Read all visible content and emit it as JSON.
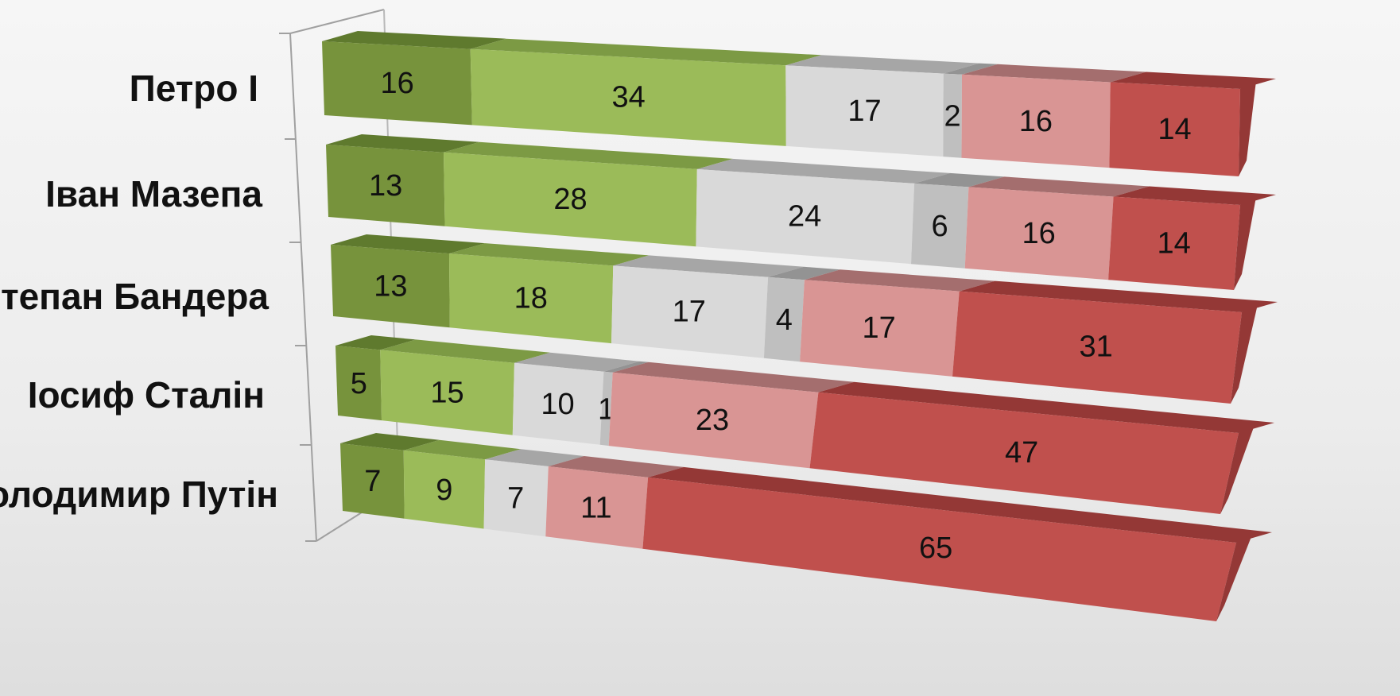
{
  "chart_data": {
    "type": "bar",
    "orientation": "horizontal",
    "stacked": true,
    "style": "3d",
    "title": "",
    "xlabel": "",
    "ylabel": "",
    "categories": [
      "Петро I",
      "Іван Мазепа",
      "Степан Бандера",
      "Іосиф Сталін",
      "Володимир Путін"
    ],
    "series": [
      {
        "values": [
          16,
          13,
          13,
          5,
          7
        ],
        "color": "#77933c",
        "top_color": "#5f7a2e"
      },
      {
        "values": [
          34,
          28,
          18,
          15,
          9
        ],
        "color": "#9bbb59",
        "top_color": "#7c9a44"
      },
      {
        "values": [
          17,
          24,
          17,
          10,
          7
        ],
        "color": "#d9d9d9",
        "top_color": "#a6a6a6"
      },
      {
        "values": [
          2,
          6,
          4,
          1,
          0
        ],
        "color": "#bfbfbf",
        "top_color": "#939393"
      },
      {
        "values": [
          16,
          16,
          17,
          23,
          11
        ],
        "color": "#d99594",
        "top_color": "#a46e6e"
      },
      {
        "values": [
          14,
          14,
          31,
          47,
          65
        ],
        "color": "#c0504d",
        "top_color": "#943836"
      }
    ],
    "grid": false,
    "legend": "none"
  }
}
